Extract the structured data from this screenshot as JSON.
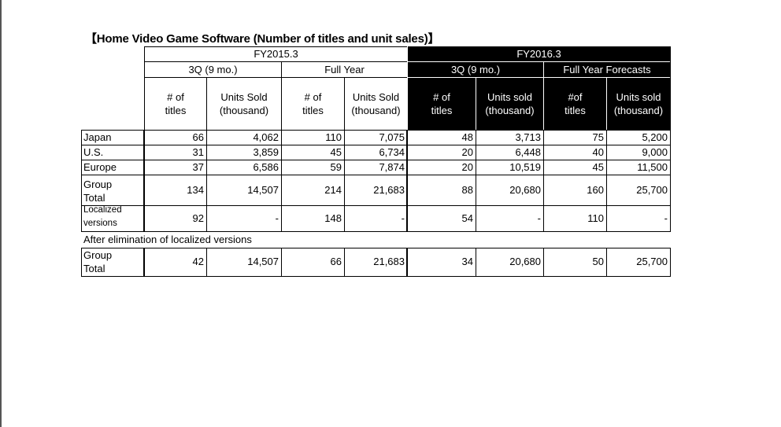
{
  "title": "【Home Video Game Software (Number of titles and unit sales)】",
  "headers": {
    "fy_prev": "FY2015.3",
    "fy_curr": "FY2016.3",
    "prev_3q": "3Q (9 mo.)",
    "prev_full": "Full Year",
    "curr_3q": "3Q (9 mo.)",
    "curr_forecast": "Full Year Forecasts",
    "col_labels": [
      "# of\ntitles",
      "Units Sold\n(thousand)",
      "# of\ntitles",
      "Units Sold\n(thousand)",
      "# of\ntitles",
      "Units sold\n(thousand)",
      "#of\ntitles",
      "Units sold\n(thousand)"
    ]
  },
  "rows": [
    {
      "label": "Japan",
      "values": [
        "66",
        "4,062",
        "110",
        "7,075",
        "48",
        "3,713",
        "75",
        "5,200"
      ]
    },
    {
      "label": "U.S.",
      "values": [
        "31",
        "3,859",
        "45",
        "6,734",
        "20",
        "6,448",
        "40",
        "9,000"
      ]
    },
    {
      "label": "Europe",
      "values": [
        "37",
        "6,586",
        "59",
        "7,874",
        "20",
        "10,519",
        "45",
        "11,500"
      ]
    },
    {
      "label": "Group\nTotal",
      "values": [
        "134",
        "14,507",
        "214",
        "21,683",
        "88",
        "20,680",
        "160",
        "25,700"
      ]
    },
    {
      "label": "Localized\nversions",
      "values": [
        "92",
        "-",
        "148",
        "-",
        "54",
        "-",
        "110",
        "-"
      ]
    }
  ],
  "after_note": "After elimination of localized versions",
  "after_rows": [
    {
      "label": "Group\nTotal",
      "values": [
        "42",
        "14,507",
        "66",
        "21,683",
        "34",
        "20,680",
        "50",
        "25,700"
      ]
    }
  ]
}
